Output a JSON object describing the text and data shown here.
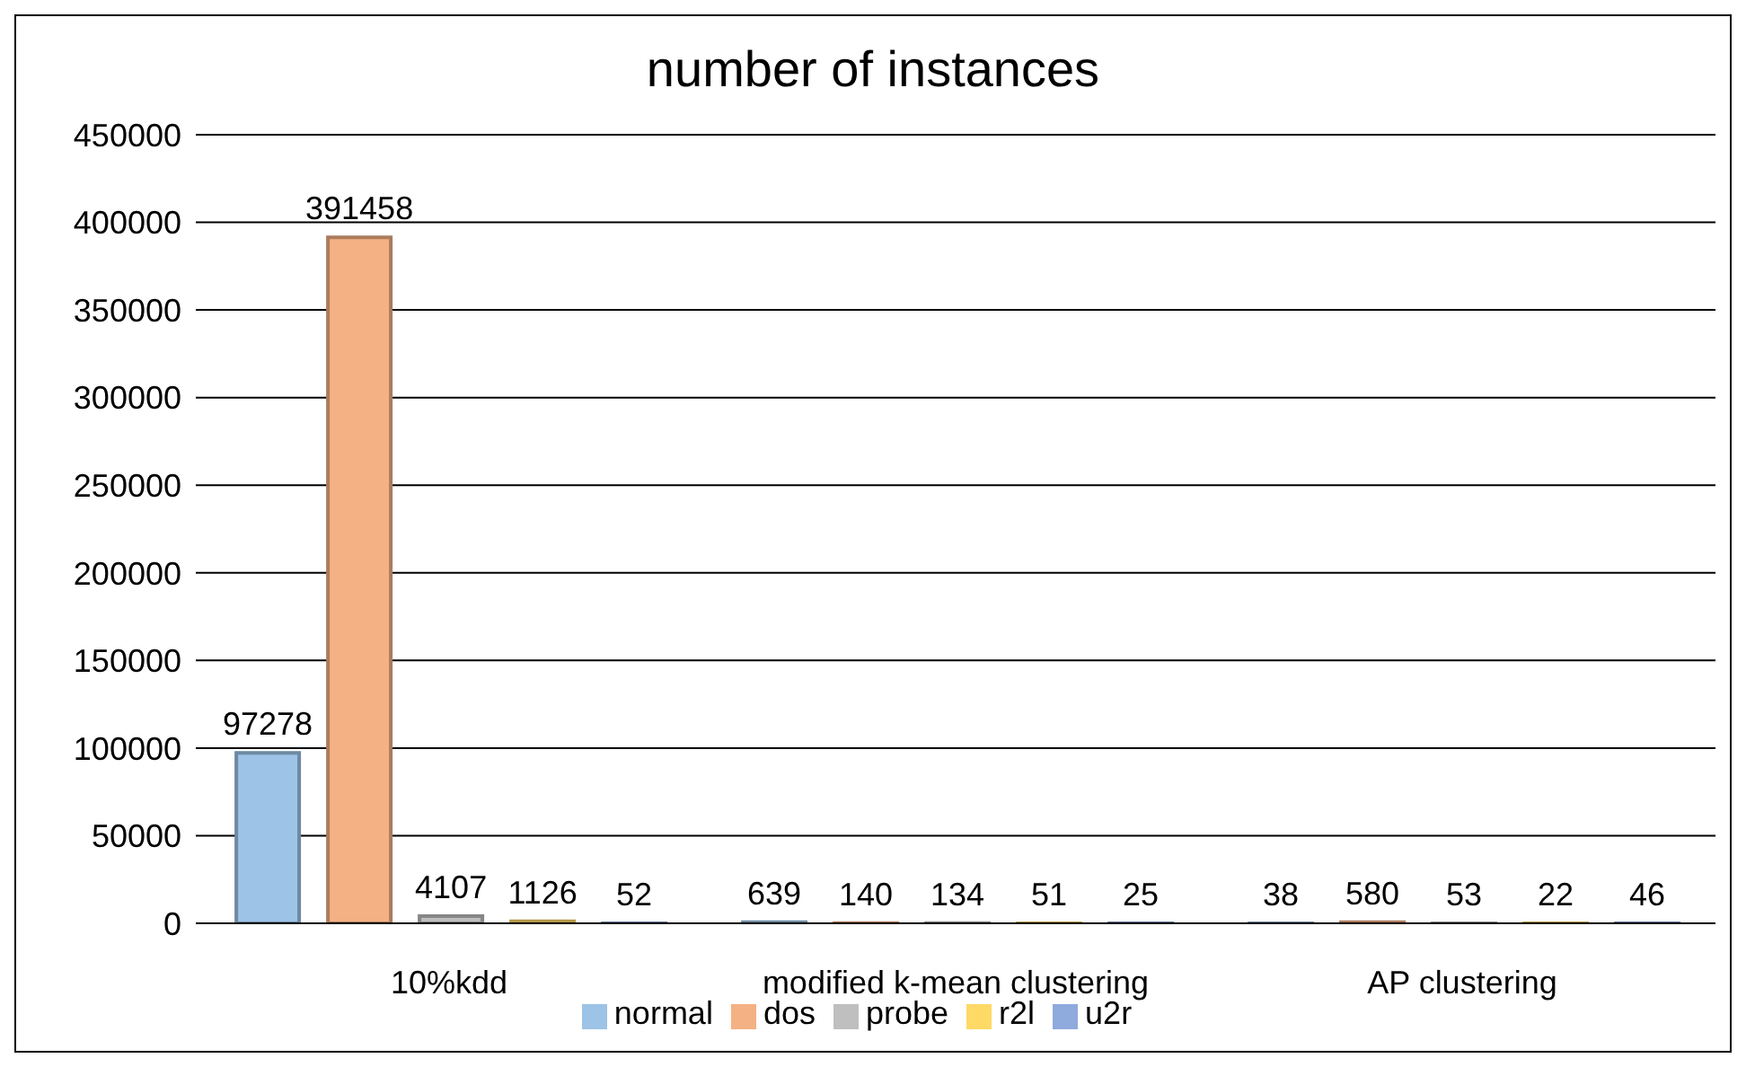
{
  "chart_data": {
    "type": "bar",
    "title": "number of instances",
    "categories": [
      "10%kdd",
      "modified k-mean clustering",
      "AP clustering"
    ],
    "series": [
      {
        "name": "normal",
        "color": "#9dc3e6",
        "values": [
          97278,
          639,
          38
        ]
      },
      {
        "name": "dos",
        "color": "#f4b183",
        "values": [
          391458,
          140,
          580
        ]
      },
      {
        "name": "probe",
        "color": "#bfbfbf",
        "values": [
          4107,
          134,
          53
        ]
      },
      {
        "name": "r2l",
        "color": "#ffd966",
        "values": [
          1126,
          51,
          22
        ]
      },
      {
        "name": "u2r",
        "color": "#8faadc",
        "values": [
          52,
          25,
          46
        ]
      }
    ],
    "ylim": [
      0,
      450000
    ],
    "yticks": [
      0,
      50000,
      100000,
      150000,
      200000,
      250000,
      300000,
      350000,
      400000,
      450000
    ],
    "grid": "y",
    "legend": "bottom",
    "data_labels": true
  }
}
